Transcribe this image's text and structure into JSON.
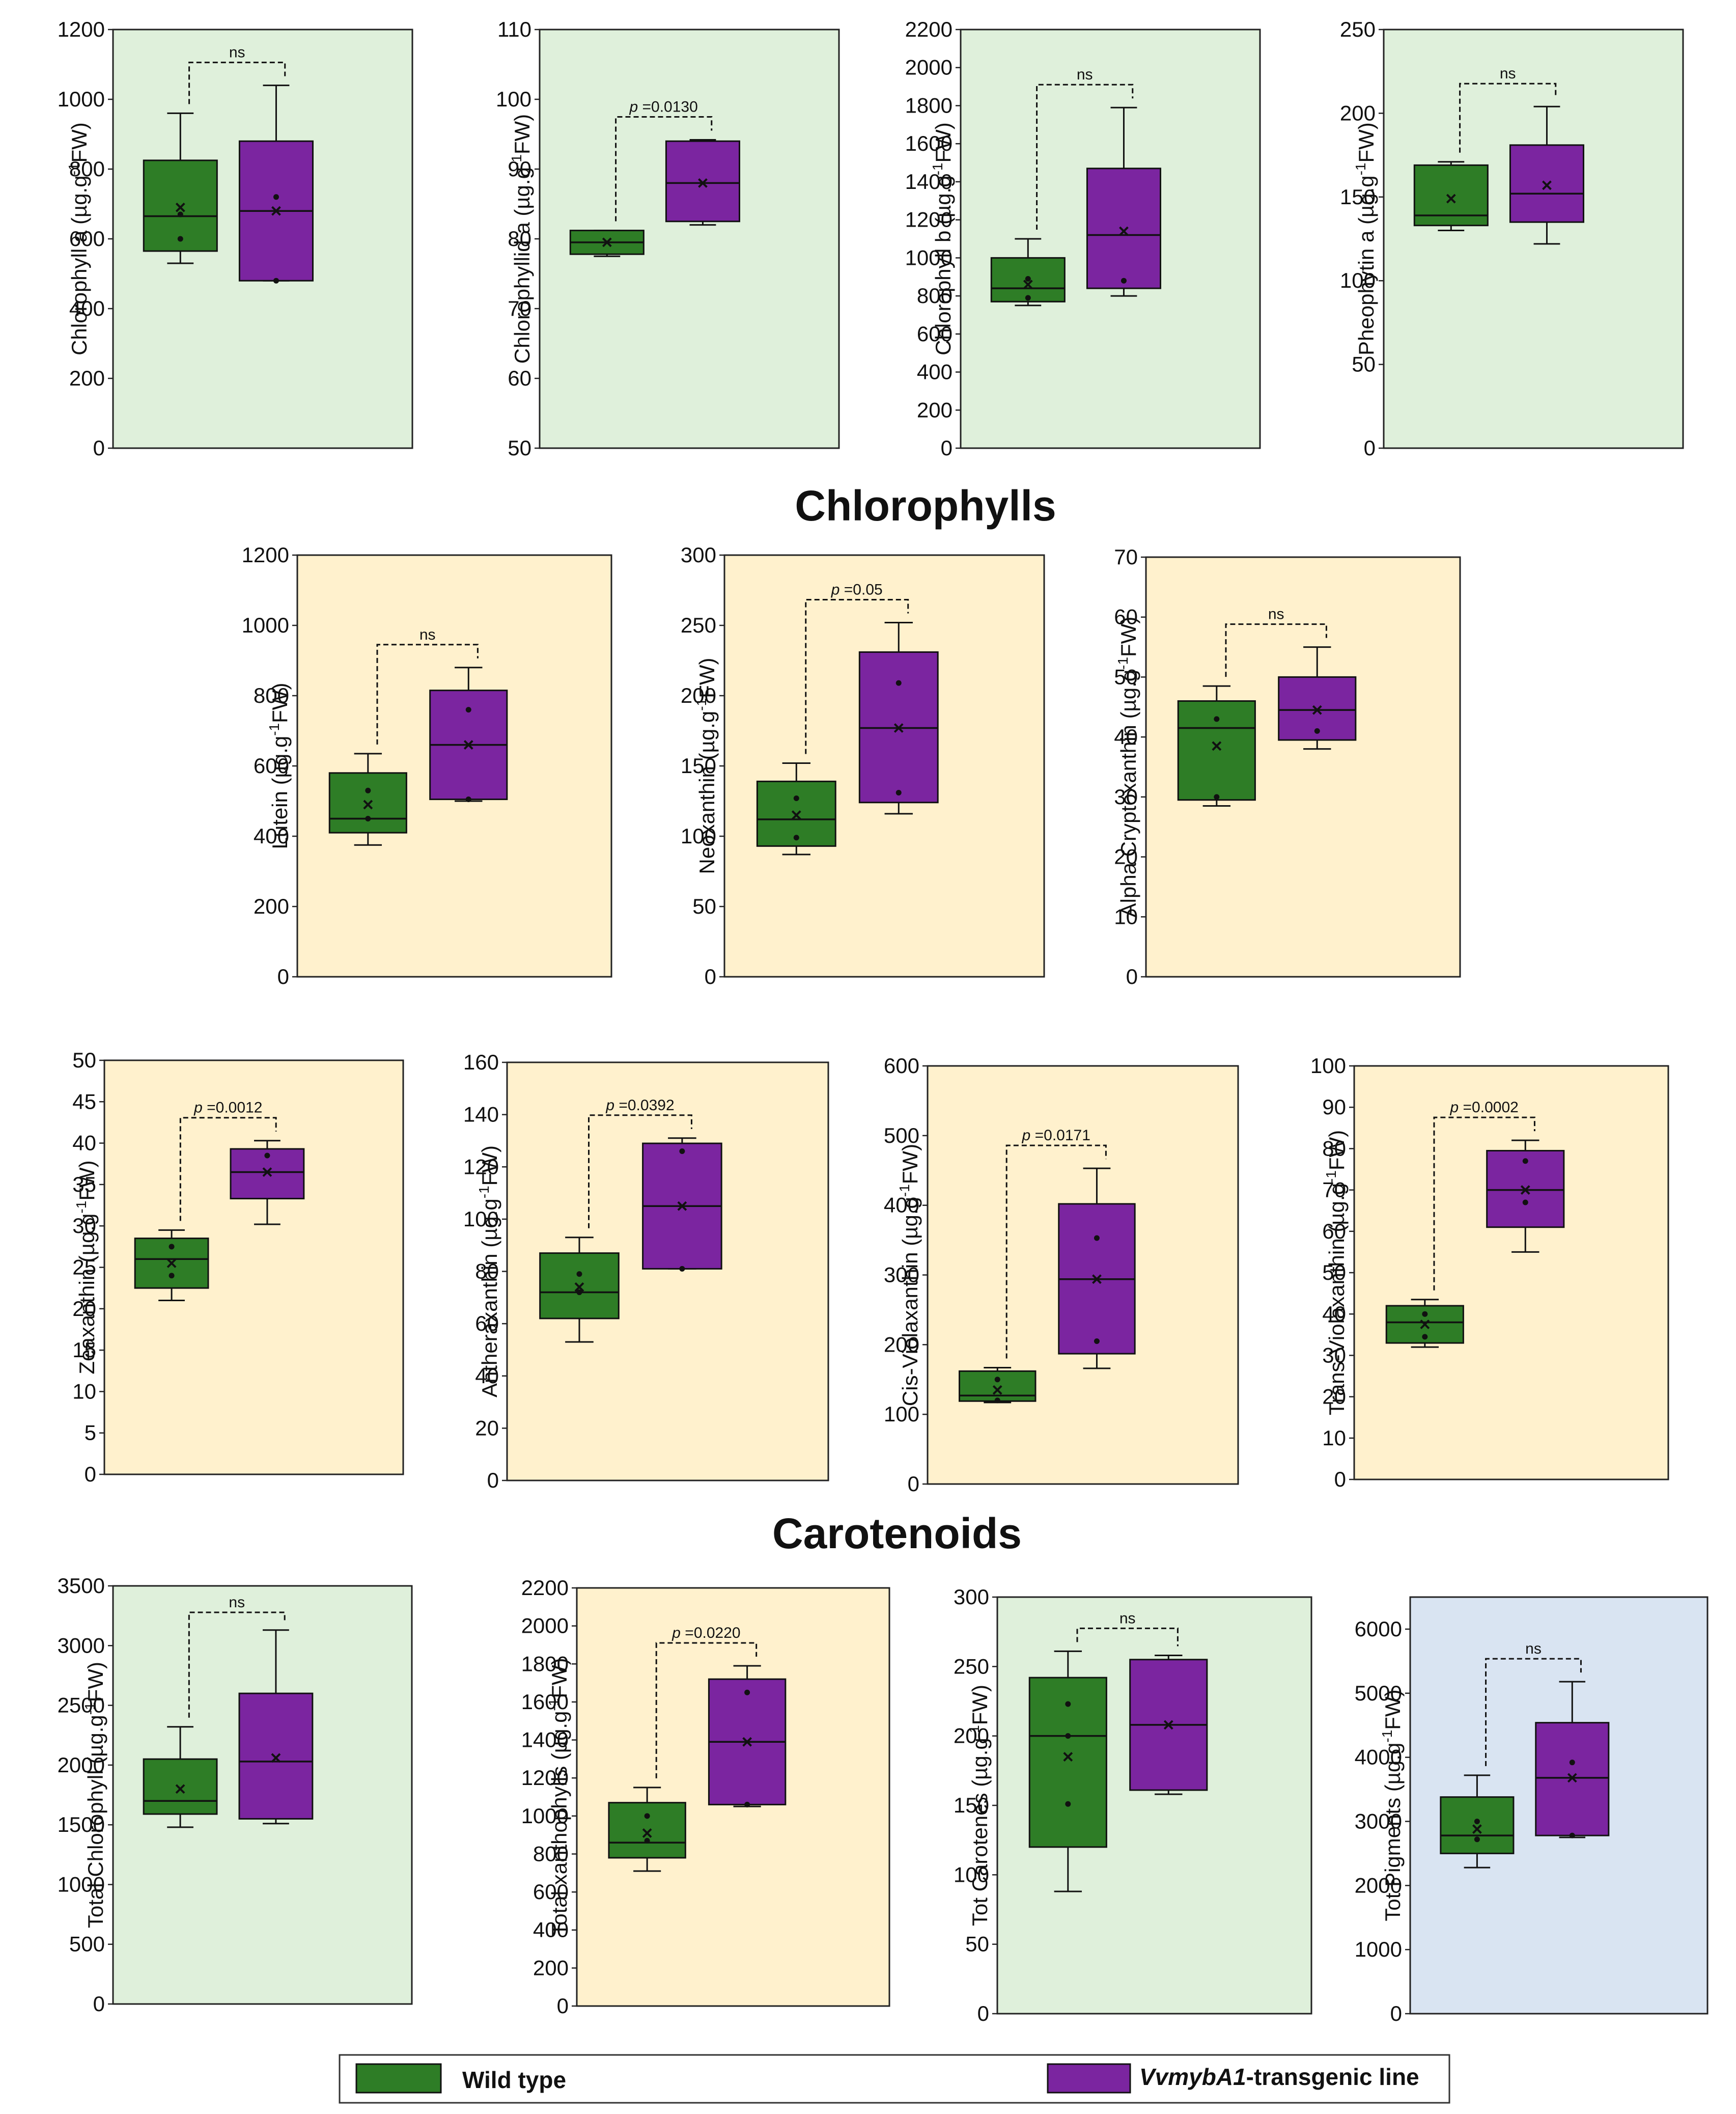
{
  "sections": {
    "chlorophylls": "Chlorophylls",
    "carotenoids": "Carotenoids"
  },
  "legend": {
    "wild_label": "Wild type",
    "transgenic_label_italic": "VvmybA1",
    "transgenic_label_suffix": "-transgenic line"
  },
  "colors": {
    "wild_type": "#2e7d26",
    "transgenic": "#7b25a0",
    "green_bg": "#dff0db",
    "yellow_bg": "#fff1cd",
    "blue_bg": "#d9e4f2"
  },
  "chart_data": [
    {
      "type": "box",
      "panel": "Chlorophyll a",
      "ylabel_main": "Chlorophyll a (µg.g",
      "ylabel_sup": "-1",
      "ylabel_end": "FW)",
      "ylim": [
        0,
        1200
      ],
      "ticks": [
        0,
        200,
        400,
        600,
        800,
        1000,
        1200
      ],
      "bg": "green",
      "sig_prefix": "",
      "sig_value": "ns",
      "groups": [
        {
          "name": "Wild type",
          "min": 530,
          "q1": 565,
          "median": 665,
          "q3": 825,
          "max": 960,
          "mean": 690,
          "points": [
            600,
            670
          ]
        },
        {
          "name": "VvmybA1-transgenic line",
          "min": 480,
          "q1": 480,
          "median": 680,
          "q3": 880,
          "max": 1040,
          "mean": 680,
          "points": [
            480,
            720
          ]
        }
      ]
    },
    {
      "type": "box",
      "panel": "Chlorophyllid a",
      "ylabel_main": "Chlorophyllid a (µg.g",
      "ylabel_sup": "-1",
      "ylabel_end": "FW)",
      "ylim": [
        50,
        110
      ],
      "ticks": [
        50,
        60,
        70,
        80,
        90,
        100,
        110
      ],
      "bg": "green",
      "sig_prefix": "p",
      "sig_value": " =0.0130",
      "groups": [
        {
          "name": "Wild type",
          "min": 77.5,
          "q1": 77.8,
          "median": 79.5,
          "q3": 81.2,
          "max": 81.2,
          "mean": 79.5,
          "points": []
        },
        {
          "name": "VvmybA1-transgenic line",
          "min": 82,
          "q1": 82.5,
          "median": 88,
          "q3": 94,
          "max": 94.2,
          "mean": 88,
          "points": []
        }
      ]
    },
    {
      "type": "box",
      "panel": "Chlorophyll b",
      "ylabel_main": "Chlorophyll b (µg.g",
      "ylabel_sup": "-1",
      "ylabel_end": "FW)",
      "ylim": [
        0,
        2200
      ],
      "ticks": [
        0,
        200,
        400,
        600,
        800,
        1000,
        1200,
        1400,
        1600,
        1800,
        2000,
        2200
      ],
      "bg": "green",
      "sig_prefix": "",
      "sig_value": "ns",
      "groups": [
        {
          "name": "Wild type",
          "min": 750,
          "q1": 770,
          "median": 840,
          "q3": 1000,
          "max": 1100,
          "mean": 860,
          "points": [
            790,
            890
          ]
        },
        {
          "name": "VvmybA1-transgenic line",
          "min": 800,
          "q1": 840,
          "median": 1120,
          "q3": 1470,
          "max": 1790,
          "mean": 1140,
          "points": [
            880
          ]
        }
      ]
    },
    {
      "type": "box",
      "panel": "Pheophytin a",
      "ylabel_main": "Pheophytin a (µg.g",
      "ylabel_sup": "-1",
      "ylabel_end": "FW)",
      "ylim": [
        0,
        250
      ],
      "ticks": [
        0,
        50,
        100,
        150,
        200,
        250
      ],
      "bg": "green",
      "sig_prefix": "",
      "sig_value": "ns",
      "groups": [
        {
          "name": "Wild type",
          "min": 130,
          "q1": 133,
          "median": 139,
          "q3": 169,
          "max": 171,
          "mean": 149,
          "points": []
        },
        {
          "name": "VvmybA1-transgenic line",
          "min": 122,
          "q1": 135,
          "median": 152,
          "q3": 181,
          "max": 204,
          "mean": 157,
          "points": []
        }
      ]
    },
    {
      "type": "box",
      "panel": "Lutein",
      "ylabel_main": "Lutein (µg.g",
      "ylabel_sup": "-1",
      "ylabel_end": "FW)",
      "ylim": [
        0,
        1200
      ],
      "ticks": [
        0,
        200,
        400,
        600,
        800,
        1000,
        1200
      ],
      "bg": "yellow",
      "sig_prefix": "",
      "sig_value": "ns",
      "groups": [
        {
          "name": "Wild type",
          "min": 375,
          "q1": 410,
          "median": 450,
          "q3": 580,
          "max": 635,
          "mean": 490,
          "points": [
            450,
            530
          ]
        },
        {
          "name": "VvmybA1-transgenic line",
          "min": 500,
          "q1": 505,
          "median": 660,
          "q3": 815,
          "max": 880,
          "mean": 660,
          "points": [
            505,
            760
          ]
        }
      ]
    },
    {
      "type": "box",
      "panel": "Neoxanthin",
      "ylabel_main": "Neoxanthin (µg.g",
      "ylabel_sup": "-1",
      "ylabel_end": "FW)",
      "ylim": [
        0,
        300
      ],
      "ticks": [
        0,
        50,
        100,
        150,
        200,
        250,
        300
      ],
      "bg": "yellow",
      "sig_prefix": "p",
      "sig_value": " =0.05",
      "groups": [
        {
          "name": "Wild type",
          "min": 87,
          "q1": 93,
          "median": 112,
          "q3": 139,
          "max": 152,
          "mean": 115,
          "points": [
            99,
            127
          ]
        },
        {
          "name": "VvmybA1-transgenic line",
          "min": 116,
          "q1": 124,
          "median": 177,
          "q3": 231,
          "max": 252,
          "mean": 177,
          "points": [
            131,
            209
          ]
        }
      ]
    },
    {
      "type": "box",
      "panel": "Alpha Cryptoxanthin",
      "ylabel_main": "Alpha Cryptoxanthin (µg.g",
      "ylabel_sup": "-1",
      "ylabel_end": "FW)",
      "ylim": [
        0,
        70
      ],
      "ticks": [
        0,
        10,
        20,
        30,
        40,
        50,
        60,
        70
      ],
      "bg": "yellow",
      "sig_prefix": "",
      "sig_value": "ns",
      "groups": [
        {
          "name": "Wild type",
          "min": 28.5,
          "q1": 29.5,
          "median": 41.5,
          "q3": 46,
          "max": 48.5,
          "mean": 38.5,
          "points": [
            30,
            43
          ]
        },
        {
          "name": "VvmybA1-transgenic line",
          "min": 38,
          "q1": 39.5,
          "median": 44.5,
          "q3": 50,
          "max": 55,
          "mean": 44.5,
          "points": [
            41
          ]
        }
      ]
    },
    {
      "type": "box",
      "panel": "Zeaxanthin",
      "ylabel_main": "Zeaxanthin (µg.g",
      "ylabel_sup": "-1",
      "ylabel_end": "FW)",
      "ylim": [
        0,
        50
      ],
      "ticks": [
        0,
        5,
        10,
        15,
        20,
        25,
        30,
        35,
        40,
        45,
        50
      ],
      "bg": "yellow",
      "sig_prefix": "p",
      "sig_value": " =0.0012",
      "groups": [
        {
          "name": "Wild type",
          "min": 21,
          "q1": 22.5,
          "median": 26,
          "q3": 28.5,
          "max": 29.5,
          "mean": 25.5,
          "points": [
            24,
            27.5
          ]
        },
        {
          "name": "VvmybA1-transgenic line",
          "min": 30.2,
          "q1": 33.3,
          "median": 36.5,
          "q3": 39.3,
          "max": 40.3,
          "mean": 36.5,
          "points": [
            38.5
          ]
        }
      ]
    },
    {
      "type": "box",
      "panel": "Antheraxanthin",
      "ylabel_main": "Antheraxanthin (µg.g",
      "ylabel_sup": "-1",
      "ylabel_end": "FW)",
      "ylim": [
        0,
        160
      ],
      "ticks": [
        0,
        20,
        40,
        60,
        80,
        100,
        120,
        140,
        160
      ],
      "bg": "yellow",
      "sig_prefix": "p",
      "sig_value": " =0.0392",
      "groups": [
        {
          "name": "Wild type",
          "min": 53,
          "q1": 62,
          "median": 72,
          "q3": 87,
          "max": 93,
          "mean": 74,
          "points": [
            72,
            79
          ]
        },
        {
          "name": "VvmybA1-transgenic line",
          "min": 81,
          "q1": 81,
          "median": 105,
          "q3": 129,
          "max": 131,
          "mean": 105,
          "points": [
            81,
            126
          ]
        }
      ]
    },
    {
      "type": "box",
      "panel": "Cis-Violaxanthin",
      "ylabel_main": "Cis-Violaxanthin (µg.g",
      "ylabel_sup": "-1",
      "ylabel_end": "FW)",
      "ylim": [
        0,
        600
      ],
      "ticks": [
        0,
        100,
        200,
        300,
        400,
        500,
        600
      ],
      "bg": "yellow",
      "sig_prefix": "p",
      "sig_value": "  =0.0171",
      "groups": [
        {
          "name": "Wild type",
          "min": 117,
          "q1": 119,
          "median": 127,
          "q3": 162,
          "max": 167,
          "mean": 135,
          "points": [
            120,
            150
          ]
        },
        {
          "name": "VvmybA1-transgenic line",
          "min": 166,
          "q1": 187,
          "median": 294,
          "q3": 402,
          "max": 453,
          "mean": 294,
          "points": [
            205,
            353
          ]
        }
      ]
    },
    {
      "type": "box",
      "panel": "Trans-Violaxanthin",
      "ylabel_main": "Trans-Violaxanthin (µg.g",
      "ylabel_sup": "-1",
      "ylabel_end": "FW)",
      "ylim": [
        0,
        100
      ],
      "ticks": [
        0,
        10,
        20,
        30,
        40,
        50,
        60,
        70,
        80,
        90,
        100
      ],
      "bg": "yellow",
      "sig_prefix": "p",
      "sig_value": " =0.0002",
      "groups": [
        {
          "name": "Wild type",
          "min": 32,
          "q1": 33,
          "median": 38,
          "q3": 42,
          "max": 43.5,
          "mean": 37.5,
          "points": [
            34.5,
            40
          ]
        },
        {
          "name": "VvmybA1-transgenic line",
          "min": 55,
          "q1": 61,
          "median": 70,
          "q3": 79.5,
          "max": 82,
          "mean": 70,
          "points": [
            67,
            77
          ]
        }
      ]
    },
    {
      "type": "box",
      "panel": "Total Chlorophyll",
      "ylabel_main": "Total  Chlorophyll (µg.g",
      "ylabel_sup": "-1",
      "ylabel_end": "FW)",
      "ylim": [
        0,
        3500
      ],
      "ticks": [
        0,
        500,
        1000,
        1500,
        2000,
        2500,
        3000,
        3500
      ],
      "bg": "green",
      "sig_prefix": "",
      "sig_value": "ns",
      "groups": [
        {
          "name": "Wild type",
          "min": 1480,
          "q1": 1590,
          "median": 1700,
          "q3": 2050,
          "max": 2320,
          "mean": 1800,
          "points": []
        },
        {
          "name": "VvmybA1-transgenic line",
          "min": 1510,
          "q1": 1550,
          "median": 2030,
          "q3": 2600,
          "max": 3130,
          "mean": 2060,
          "points": []
        }
      ]
    },
    {
      "type": "box",
      "panel": "Total xanthophylls",
      "ylabel_main": "Total xanthophylls (µg.g",
      "ylabel_sup": "-1",
      "ylabel_end": "FW)",
      "ylim": [
        0,
        2200
      ],
      "ticks": [
        0,
        200,
        400,
        600,
        800,
        1000,
        1200,
        1400,
        1600,
        1800,
        2000,
        2200
      ],
      "bg": "yellow",
      "sig_prefix": "p",
      "sig_value": " =0.0220",
      "groups": [
        {
          "name": "Wild type",
          "min": 710,
          "q1": 780,
          "median": 860,
          "q3": 1070,
          "max": 1150,
          "mean": 910,
          "points": [
            870,
            1000
          ]
        },
        {
          "name": "VvmybA1-transgenic line",
          "min": 1050,
          "q1": 1060,
          "median": 1390,
          "q3": 1720,
          "max": 1790,
          "mean": 1390,
          "points": [
            1060,
            1650
          ]
        }
      ]
    },
    {
      "type": "box",
      "panel": "Tot Carotenes",
      "ylabel_main": "Tot Carotenes (µg.g",
      "ylabel_sup": "-1",
      "ylabel_end": "FW)",
      "ylim": [
        0,
        300
      ],
      "ticks": [
        0,
        50,
        100,
        150,
        200,
        250,
        300
      ],
      "bg": "green",
      "sig_prefix": "",
      "sig_value": "ns",
      "groups": [
        {
          "name": "Wild type",
          "min": 88,
          "q1": 120,
          "median": 200,
          "q3": 242,
          "max": 261,
          "mean": 185,
          "points": [
            151,
            200,
            223
          ]
        },
        {
          "name": "VvmybA1-transgenic line",
          "min": 158,
          "q1": 161,
          "median": 208,
          "q3": 255,
          "max": 258,
          "mean": 208,
          "points": []
        }
      ]
    },
    {
      "type": "box",
      "panel": "Tot Pigments",
      "ylabel_main": "Tot Pigments (µg.g",
      "ylabel_sup": "-1",
      "ylabel_end": "FW)",
      "ylim": [
        0,
        6500
      ],
      "ticks": [
        0,
        1000,
        2000,
        3000,
        4000,
        5000,
        6000
      ],
      "bg": "blue",
      "sig_prefix": "",
      "sig_value": "ns",
      "groups": [
        {
          "name": "Wild type",
          "min": 2280,
          "q1": 2500,
          "median": 2780,
          "q3": 3380,
          "max": 3720,
          "mean": 2880,
          "points": [
            2720,
            3000
          ]
        },
        {
          "name": "VvmybA1-transgenic line",
          "min": 2750,
          "q1": 2780,
          "median": 3680,
          "q3": 4540,
          "max": 5180,
          "mean": 3680,
          "points": [
            2780,
            3920
          ]
        }
      ]
    }
  ]
}
